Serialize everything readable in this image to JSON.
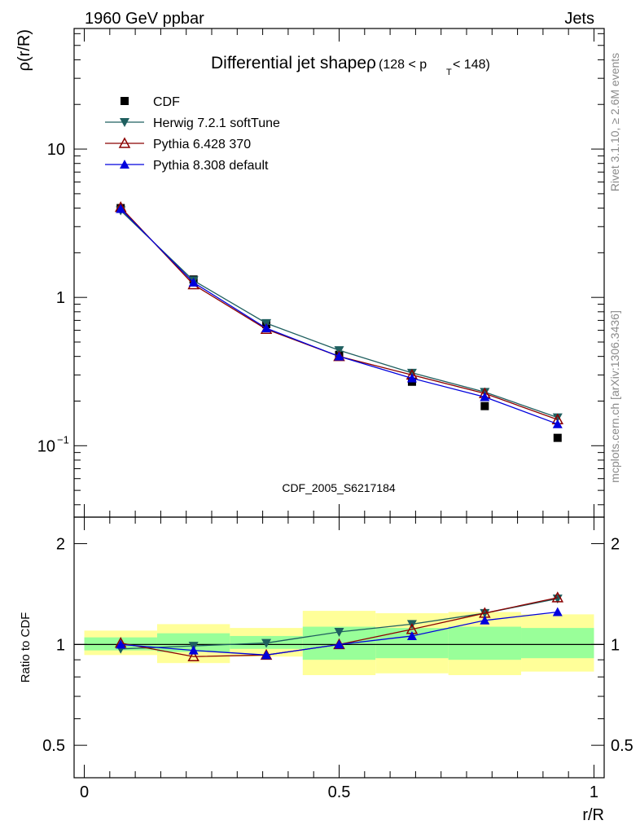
{
  "header": {
    "left": "1960 GeV ppbar",
    "right": "Jets"
  },
  "side_labels": {
    "rivet": "Rivet 3.1.10, ≥ 2.6M events",
    "mcplots": "mcplots.cern.ch [arXiv:1306.3436]"
  },
  "chart_data": [
    {
      "type": "line",
      "title": "Differential jet shapeρ",
      "title_suffix_pre": "(128 < p",
      "title_suffix_sub": "T",
      "title_suffix_post": " < 148)",
      "ylabel": "ρ(r/R)",
      "xlabel": "",
      "yscale": "log",
      "xlim": [
        -0.02,
        1.02
      ],
      "ylim": [
        0.033,
        65
      ],
      "yticks": [
        {
          "value": 10,
          "label": "10"
        },
        {
          "value": 1,
          "label": "1"
        },
        {
          "value": 0.1,
          "label": "10",
          "exp": "−1"
        }
      ],
      "watermark": "CDF_2005_S6217184",
      "legend_position": "top-left",
      "x": [
        0.0714,
        0.2143,
        0.3571,
        0.5,
        0.6429,
        0.7857,
        0.9286
      ],
      "series": [
        {
          "name": "CDF",
          "color": "#000000",
          "marker": "square",
          "line": false,
          "values": [
            4.0,
            1.32,
            0.66,
            0.41,
            0.27,
            0.185,
            0.113
          ]
        },
        {
          "name": "Herwig 7.2.1 softTune",
          "color": "#1f5f5f",
          "marker": "triangle-down",
          "line": true,
          "values": [
            3.85,
            1.3,
            0.67,
            0.44,
            0.31,
            0.23,
            0.155
          ]
        },
        {
          "name": "Pythia 6.428 370",
          "color": "#8b0000",
          "marker": "triangle-up-open",
          "line": true,
          "values": [
            4.05,
            1.22,
            0.61,
            0.4,
            0.3,
            0.225,
            0.15
          ]
        },
        {
          "name": "Pythia 8.308 default",
          "color": "#0000dd",
          "marker": "triangle-up",
          "line": true,
          "values": [
            3.95,
            1.26,
            0.62,
            0.4,
            0.285,
            0.213,
            0.14
          ]
        }
      ]
    },
    {
      "type": "line",
      "ylabel": "Ratio to CDF",
      "xlabel": "r/R",
      "yscale": "log",
      "xlim": [
        -0.02,
        1.02
      ],
      "ylim": [
        0.4,
        2.4
      ],
      "xticks": [
        {
          "value": 0,
          "label": "0"
        },
        {
          "value": 0.5,
          "label": "0.5"
        },
        {
          "value": 1,
          "label": "1"
        }
      ],
      "yticks": [
        {
          "value": 2,
          "label": "2"
        },
        {
          "value": 1,
          "label": "1"
        },
        {
          "value": 0.5,
          "label": "0.5"
        }
      ],
      "bands": [
        {
          "x0": 0.0,
          "x1": 0.1429,
          "outer": [
            0.93,
            1.1
          ],
          "inner": [
            0.96,
            1.05
          ]
        },
        {
          "x0": 0.1429,
          "x1": 0.2857,
          "outer": [
            0.88,
            1.15
          ],
          "inner": [
            0.95,
            1.08
          ]
        },
        {
          "x0": 0.2857,
          "x1": 0.4286,
          "outer": [
            0.92,
            1.12
          ],
          "inner": [
            0.97,
            1.06
          ]
        },
        {
          "x0": 0.4286,
          "x1": 0.5714,
          "outer": [
            0.81,
            1.26
          ],
          "inner": [
            0.9,
            1.13
          ]
        },
        {
          "x0": 0.5714,
          "x1": 0.7143,
          "outer": [
            0.82,
            1.24
          ],
          "inner": [
            0.91,
            1.12
          ]
        },
        {
          "x0": 0.7143,
          "x1": 0.8571,
          "outer": [
            0.81,
            1.25
          ],
          "inner": [
            0.9,
            1.13
          ]
        },
        {
          "x0": 0.8571,
          "x1": 1.0,
          "outer": [
            0.83,
            1.23
          ],
          "inner": [
            0.91,
            1.12
          ]
        }
      ],
      "x": [
        0.0714,
        0.2143,
        0.3571,
        0.5,
        0.6429,
        0.7857,
        0.9286
      ],
      "series": [
        {
          "name": "Herwig 7.2.1 softTune",
          "color": "#1f5f5f",
          "marker": "triangle-down",
          "values": [
            0.97,
            0.99,
            1.01,
            1.09,
            1.15,
            1.24,
            1.37
          ]
        },
        {
          "name": "Pythia 6.428 370",
          "color": "#8b0000",
          "marker": "triangle-up-open",
          "values": [
            1.01,
            0.92,
            0.93,
            1.0,
            1.11,
            1.24,
            1.38
          ]
        },
        {
          "name": "Pythia 8.308 default",
          "color": "#0000dd",
          "marker": "triangle-up",
          "values": [
            1.0,
            0.96,
            0.93,
            1.0,
            1.06,
            1.18,
            1.25
          ]
        }
      ]
    }
  ]
}
